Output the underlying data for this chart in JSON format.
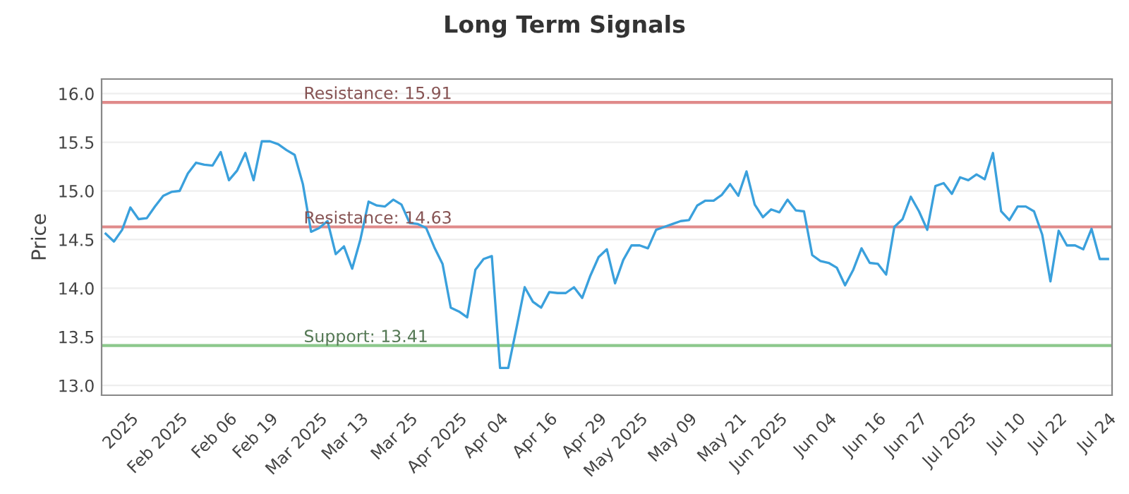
{
  "chart_data": {
    "type": "line",
    "title": "Long Term Signals",
    "ylabel": "Price",
    "categories": [
      null,
      null,
      null,
      "2025",
      null,
      null,
      null,
      null,
      null,
      "Feb 2025",
      null,
      null,
      null,
      null,
      null,
      "Feb 06",
      null,
      null,
      null,
      null,
      "Feb 19",
      null,
      null,
      null,
      null,
      null,
      "Mar 2025",
      null,
      null,
      null,
      null,
      "Mar 13",
      null,
      null,
      null,
      null,
      null,
      "Mar 25",
      null,
      null,
      null,
      null,
      null,
      "Apr 2025",
      null,
      null,
      null,
      null,
      "Apr 04",
      null,
      null,
      null,
      null,
      null,
      "Apr 16",
      null,
      null,
      null,
      null,
      null,
      "Apr 29",
      null,
      null,
      null,
      null,
      "May 2025",
      null,
      null,
      null,
      null,
      null,
      "May 09",
      null,
      null,
      null,
      null,
      null,
      "May 21",
      null,
      null,
      null,
      null,
      "Jun 2025",
      null,
      null,
      null,
      null,
      null,
      "Jun 04",
      null,
      null,
      null,
      null,
      null,
      "Jun 16",
      null,
      null,
      null,
      null,
      "Jun 27",
      null,
      null,
      null,
      null,
      null,
      "Jul 2025",
      null,
      null,
      null,
      null,
      null,
      "Jul 10",
      null,
      null,
      null,
      null,
      "Jul 22",
      null,
      null,
      null,
      null,
      null,
      "Jul 24"
    ],
    "series": [
      {
        "color": "#3aa0dc",
        "values": [
          14.56,
          14.48,
          14.6,
          14.83,
          14.71,
          14.72,
          14.84,
          14.95,
          14.99,
          15.0,
          15.18,
          15.29,
          15.27,
          15.26,
          15.4,
          15.11,
          15.21,
          15.39,
          15.11,
          15.51,
          15.51,
          15.48,
          15.42,
          15.37,
          15.07,
          14.58,
          14.62,
          14.69,
          14.35,
          14.43,
          14.2,
          14.5,
          14.89,
          14.85,
          14.84,
          14.91,
          14.86,
          14.67,
          14.66,
          14.62,
          14.42,
          14.25,
          13.8,
          13.76,
          13.7,
          14.19,
          14.3,
          14.33,
          13.18,
          13.18,
          13.59,
          14.01,
          13.86,
          13.8,
          13.96,
          13.95,
          13.95,
          14.01,
          13.9,
          14.13,
          14.32,
          14.4,
          14.05,
          14.29,
          14.44,
          14.44,
          14.41,
          14.6,
          14.63,
          14.66,
          14.69,
          14.7,
          14.85,
          14.9,
          14.9,
          14.96,
          15.07,
          14.95,
          15.2,
          14.86,
          14.73,
          14.81,
          14.78,
          14.91,
          14.8,
          14.79,
          14.34,
          14.28,
          14.26,
          14.21,
          14.03,
          14.19,
          14.41,
          14.26,
          14.25,
          14.14,
          14.63,
          14.71,
          14.94,
          14.79,
          14.6,
          15.05,
          15.08,
          14.97,
          15.14,
          15.11,
          15.17,
          15.12,
          15.39,
          14.79,
          14.7,
          14.84,
          14.84,
          14.79,
          14.55,
          14.07,
          14.59,
          14.44,
          14.44,
          14.4,
          14.61,
          14.3,
          14.3
        ]
      }
    ],
    "ylim": [
      12.9,
      16.15
    ],
    "yticks": [
      {
        "value": 13.0,
        "label": "13.0"
      },
      {
        "value": 13.5,
        "label": "13.5"
      },
      {
        "value": 14.0,
        "label": "14.0"
      },
      {
        "value": 14.5,
        "label": "14.5"
      },
      {
        "value": 15.0,
        "label": "15.0"
      },
      {
        "value": 15.5,
        "label": "15.5"
      },
      {
        "value": 16.0,
        "label": "16.0"
      }
    ],
    "grid": "y",
    "marker": "none",
    "line_style": "solid",
    "ref_lines": [
      {
        "axis": "y",
        "value": 15.91,
        "label": "Resistance: 15.91",
        "color": "#e08a8a"
      },
      {
        "axis": "y",
        "value": 14.63,
        "label": "Resistance: 14.63",
        "color": "#e08a8a"
      },
      {
        "axis": "y",
        "value": 13.41,
        "label": "Support: 13.41",
        "color": "#8cc88c"
      }
    ]
  }
}
